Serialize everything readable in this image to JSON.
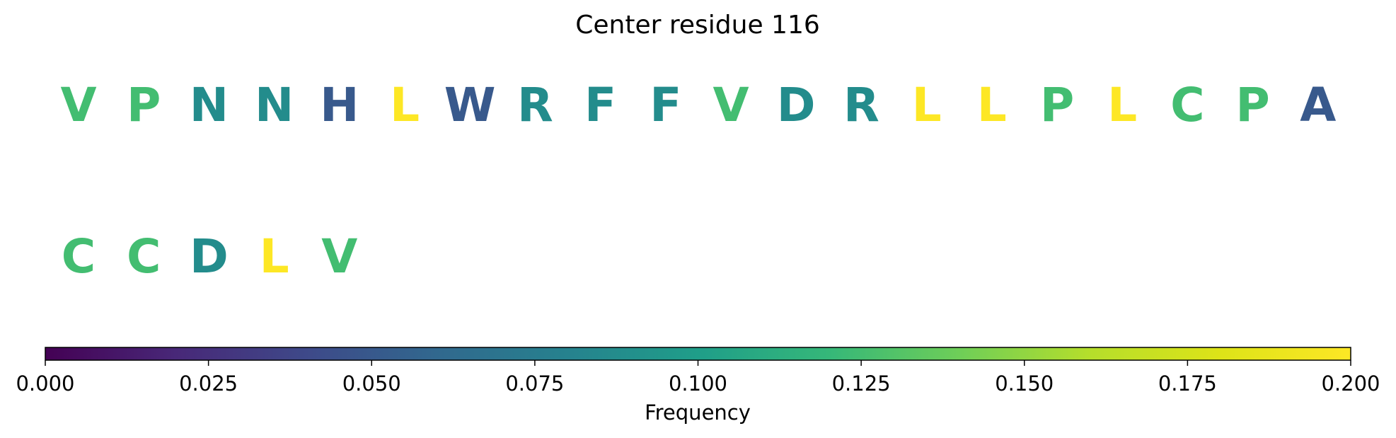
{
  "chart_data": {
    "type": "sequence-logo",
    "title": "Center residue 116",
    "residues": [
      {
        "letter": "V",
        "frequency": 0.125
      },
      {
        "letter": "P",
        "frequency": 0.125
      },
      {
        "letter": "N",
        "frequency": 0.0875
      },
      {
        "letter": "N",
        "frequency": 0.0875
      },
      {
        "letter": "H",
        "frequency": 0.05
      },
      {
        "letter": "L",
        "frequency": 0.2
      },
      {
        "letter": "W",
        "frequency": 0.05
      },
      {
        "letter": "R",
        "frequency": 0.0875
      },
      {
        "letter": "F",
        "frequency": 0.0875
      },
      {
        "letter": "F",
        "frequency": 0.0875
      },
      {
        "letter": "V",
        "frequency": 0.125
      },
      {
        "letter": "D",
        "frequency": 0.0875
      },
      {
        "letter": "R",
        "frequency": 0.0875
      },
      {
        "letter": "L",
        "frequency": 0.2
      },
      {
        "letter": "L",
        "frequency": 0.2
      },
      {
        "letter": "P",
        "frequency": 0.125
      },
      {
        "letter": "L",
        "frequency": 0.2
      },
      {
        "letter": "C",
        "frequency": 0.125
      },
      {
        "letter": "P",
        "frequency": 0.125
      },
      {
        "letter": "A",
        "frequency": 0.05
      },
      {
        "letter": "C",
        "frequency": 0.125
      },
      {
        "letter": "C",
        "frequency": 0.125
      },
      {
        "letter": "D",
        "frequency": 0.0875
      },
      {
        "letter": "L",
        "frequency": 0.2
      },
      {
        "letter": "V",
        "frequency": 0.125
      }
    ],
    "letters_per_row": 20,
    "colorbar": {
      "label": "Frequency",
      "colormap": "viridis",
      "range": [
        0,
        0.2
      ],
      "ticks": [
        "0.000",
        "0.025",
        "0.050",
        "0.075",
        "0.100",
        "0.125",
        "0.150",
        "0.175",
        "0.200"
      ],
      "orientation": "horizontal",
      "placement": "bottom"
    }
  }
}
